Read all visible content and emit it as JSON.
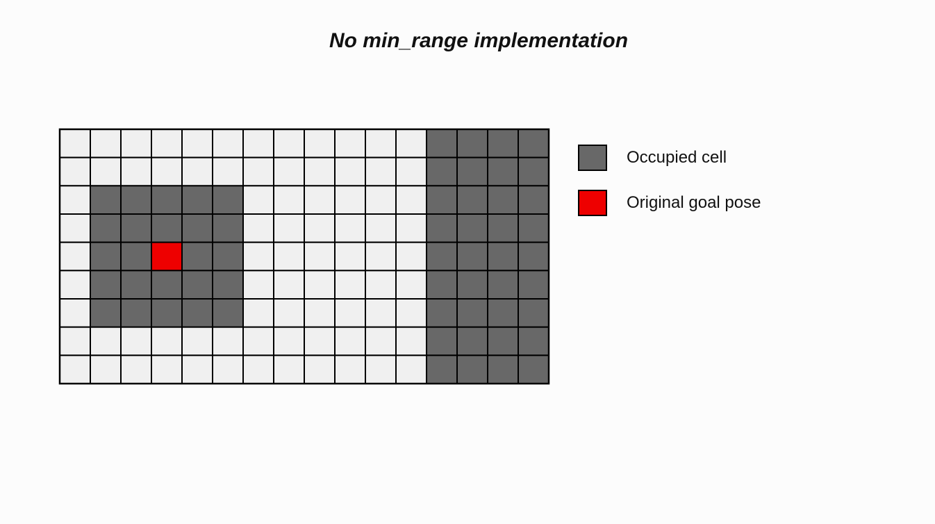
{
  "title": "No min_range implementation",
  "colors": {
    "free": "#f0f0f0",
    "occupied": "#686868",
    "goal": "#ee0000",
    "border": "#000000"
  },
  "grid": {
    "rows": 9,
    "cols": 16,
    "occupied_blocks": [
      {
        "row_start": 2,
        "row_end": 6,
        "col_start": 1,
        "col_end": 5
      },
      {
        "row_start": 0,
        "row_end": 8,
        "col_start": 12,
        "col_end": 15
      }
    ],
    "goal_cell": {
      "row": 4,
      "col": 3
    }
  },
  "legend": [
    {
      "label": "Occupied cell",
      "color_key": "occupied"
    },
    {
      "label": "Original goal pose",
      "color_key": "goal"
    }
  ]
}
